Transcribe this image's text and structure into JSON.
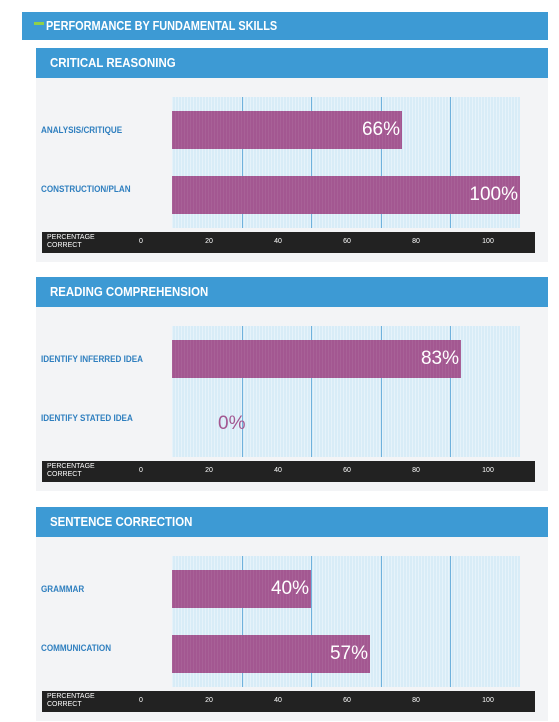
{
  "header": {
    "title": "PERFORMANCE BY FUNDAMENTAL SKILLS"
  },
  "axis": {
    "title_line1": "PERCENTAGE",
    "title_line2": "CORRECT"
  },
  "colors": {
    "header": "#3d9ad4",
    "bar": "#a35791",
    "plot_bg": "#d8ecf7",
    "accent": "#8fd04a"
  },
  "chart_data": [
    {
      "type": "bar",
      "title": "CRITICAL REASONING",
      "categories": [
        "ANALYSIS/CRITIQUE",
        "CONSTRUCTION/PLAN"
      ],
      "values": [
        66,
        100
      ],
      "labels": [
        "66%",
        "100%"
      ],
      "xlabel": "PERCENTAGE CORRECT",
      "xticks": [
        "0",
        "20",
        "40",
        "60",
        "80",
        "100"
      ],
      "xlim": [
        0,
        100
      ],
      "orientation": "horizontal"
    },
    {
      "type": "bar",
      "title": "READING COMPREHENSION",
      "categories": [
        "IDENTIFY INFERRED IDEA",
        "IDENTIFY STATED IDEA"
      ],
      "values": [
        83,
        0
      ],
      "labels": [
        "83%",
        "0%"
      ],
      "xlabel": "PERCENTAGE CORRECT",
      "xticks": [
        "0",
        "20",
        "40",
        "60",
        "80",
        "100"
      ],
      "xlim": [
        0,
        100
      ],
      "orientation": "horizontal"
    },
    {
      "type": "bar",
      "title": "SENTENCE CORRECTION",
      "categories": [
        "GRAMMAR",
        "COMMUNICATION"
      ],
      "values": [
        40,
        57
      ],
      "labels": [
        "40%",
        "57%"
      ],
      "xlabel": "PERCENTAGE CORRECT",
      "xticks": [
        "0",
        "20",
        "40",
        "60",
        "80",
        "100"
      ],
      "xlim": [
        0,
        100
      ],
      "orientation": "horizontal"
    }
  ]
}
